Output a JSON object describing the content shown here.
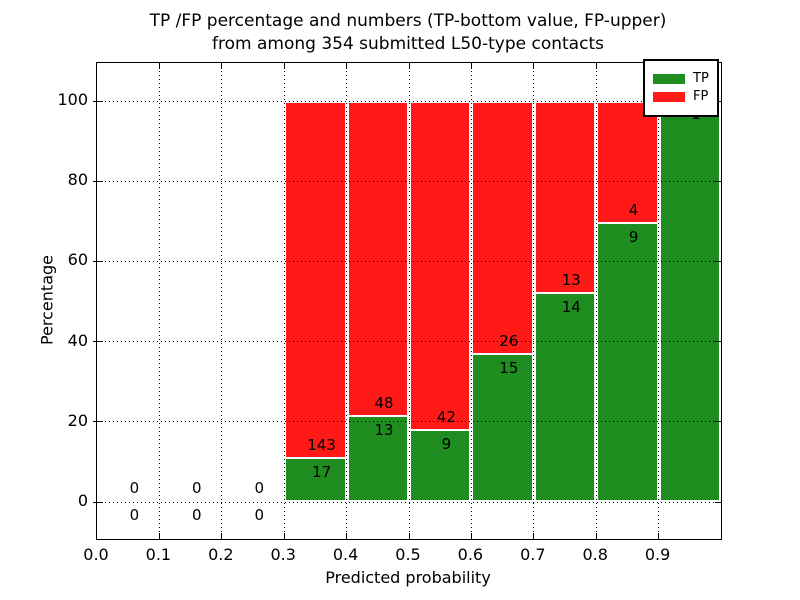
{
  "chart_data": {
    "type": "bar",
    "subtype": "stacked-percentage-histogram",
    "title_lines": [
      "TP /FP percentage and numbers (TP-bottom value, FP-upper)",
      "from among 354 submitted L50-type contacts"
    ],
    "xlabel": "Predicted probability",
    "ylabel": "Percentage",
    "xlim": [
      0.0,
      1.0
    ],
    "ylim": [
      -9.3,
      109.5
    ],
    "xticks": [
      "0.0",
      "0.1",
      "0.2",
      "0.3",
      "0.4",
      "0.5",
      "0.6",
      "0.7",
      "0.8",
      "0.9"
    ],
    "yticks": [
      0,
      20,
      40,
      60,
      80,
      100
    ],
    "grid": {
      "style": "dotted",
      "color": "#000000",
      "vertical": true,
      "horizontal": true
    },
    "legend": {
      "position": "upper-right",
      "entries": [
        {
          "label": "TP",
          "color": "#1e8c1e"
        },
        {
          "label": "FP",
          "color": "#ff1a17"
        }
      ]
    },
    "total_contacts": 354,
    "bins": [
      {
        "x0": 0.0,
        "x1": 0.1,
        "tp": 0,
        "fp": 0,
        "tp_pct": 0,
        "has_bar": false,
        "fp_label_visible": true
      },
      {
        "x0": 0.1,
        "x1": 0.2,
        "tp": 0,
        "fp": 0,
        "tp_pct": 0,
        "has_bar": false,
        "fp_label_visible": true
      },
      {
        "x0": 0.2,
        "x1": 0.3,
        "tp": 0,
        "fp": 0,
        "tp_pct": 0,
        "has_bar": false,
        "fp_label_visible": true
      },
      {
        "x0": 0.3,
        "x1": 0.4,
        "tp": 17,
        "fp": 143,
        "tp_pct": 10.63,
        "has_bar": true,
        "fp_label_visible": true
      },
      {
        "x0": 0.4,
        "x1": 0.5,
        "tp": 13,
        "fp": 48,
        "tp_pct": 21.31,
        "has_bar": true,
        "fp_label_visible": true
      },
      {
        "x0": 0.5,
        "x1": 0.6,
        "tp": 9,
        "fp": 42,
        "tp_pct": 17.65,
        "has_bar": true,
        "fp_label_visible": true
      },
      {
        "x0": 0.6,
        "x1": 0.7,
        "tp": 15,
        "fp": 26,
        "tp_pct": 36.59,
        "has_bar": true,
        "fp_label_visible": true
      },
      {
        "x0": 0.7,
        "x1": 0.8,
        "tp": 14,
        "fp": 13,
        "tp_pct": 51.85,
        "has_bar": true,
        "fp_label_visible": true
      },
      {
        "x0": 0.8,
        "x1": 0.9,
        "tp": 9,
        "fp": 4,
        "tp_pct": 69.23,
        "has_bar": true,
        "fp_label_visible": true
      },
      {
        "x0": 0.9,
        "x1": 1.0,
        "tp": 1,
        "fp": 0,
        "tp_pct": 100,
        "has_bar": true,
        "fp_label_visible": false
      }
    ],
    "colors": {
      "tp": "#1e8c1e",
      "fp": "#ff1a17",
      "grid": "#000000",
      "background": "#ffffff",
      "text": "#000000"
    }
  }
}
